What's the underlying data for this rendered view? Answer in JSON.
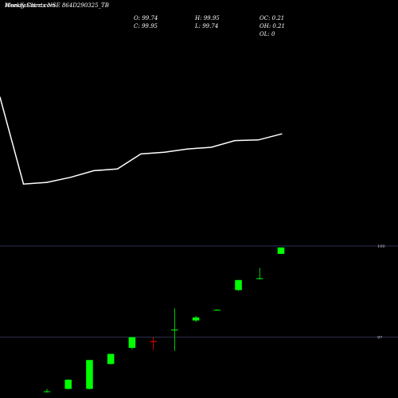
{
  "header": {
    "title_line_1": "MunafaSutra.com",
    "title_line_2": "Weekly Charts NSE 864D290325_TB"
  },
  "ohlc": {
    "open_label": "O: 99.74",
    "high_label": "H: 99.95",
    "oc_label": "OC: 0.21",
    "close_label": "C: 99.95",
    "low_label": "L: 99.74",
    "oh_label": "OH: 0.21",
    "ol_label": "OL: 0"
  },
  "colors": {
    "background": "#000000",
    "line": "#ffffff",
    "up_candle": "#00ff00",
    "down_candle": "#ff0000",
    "gridline": "#3a3f6a",
    "text": "#ffffff"
  },
  "chart_data": [
    {
      "type": "line",
      "series": [
        {
          "values": [
            99.0,
            96.4,
            96.45,
            96.6,
            96.8,
            96.85,
            97.3,
            97.35,
            97.45,
            97.5,
            97.7,
            97.72,
            97.9
          ]
        }
      ],
      "ylim": [
        95.0,
        100.0
      ],
      "grid": false
    },
    {
      "type": "candlestick",
      "ylim": [
        95.0,
        100.55
      ],
      "yticks": [
        {
          "value": 100,
          "label": "100"
        },
        {
          "value": 97,
          "label": "97"
        }
      ],
      "grid": true,
      "candles": [
        {
          "open": 95.22,
          "high": 95.3,
          "low": 95.18,
          "close": 95.22
        },
        {
          "open": 95.3,
          "high": 95.62,
          "low": 95.28,
          "close": 95.6
        },
        {
          "open": 95.3,
          "high": 96.25,
          "low": 95.28,
          "close": 96.25
        },
        {
          "open": 96.12,
          "high": 96.45,
          "low": 96.1,
          "close": 96.45
        },
        {
          "open": 96.65,
          "high": 97.0,
          "low": 96.6,
          "close": 97.0
        },
        {
          "open": 96.87,
          "high": 97.0,
          "low": 96.58,
          "close": 96.85
        },
        {
          "open": 97.25,
          "high": 97.95,
          "low": 96.55,
          "close": 97.25
        },
        {
          "open": 97.55,
          "high": 97.7,
          "low": 97.5,
          "close": 97.65
        },
        {
          "open": 97.9,
          "high": 97.92,
          "low": 97.88,
          "close": 97.9
        },
        {
          "open": 98.55,
          "high": 98.88,
          "low": 98.52,
          "close": 98.88
        },
        {
          "open": 98.92,
          "high": 99.28,
          "low": 98.9,
          "close": 98.94
        },
        {
          "open": 99.74,
          "high": 99.95,
          "low": 99.74,
          "close": 99.95
        }
      ]
    }
  ]
}
